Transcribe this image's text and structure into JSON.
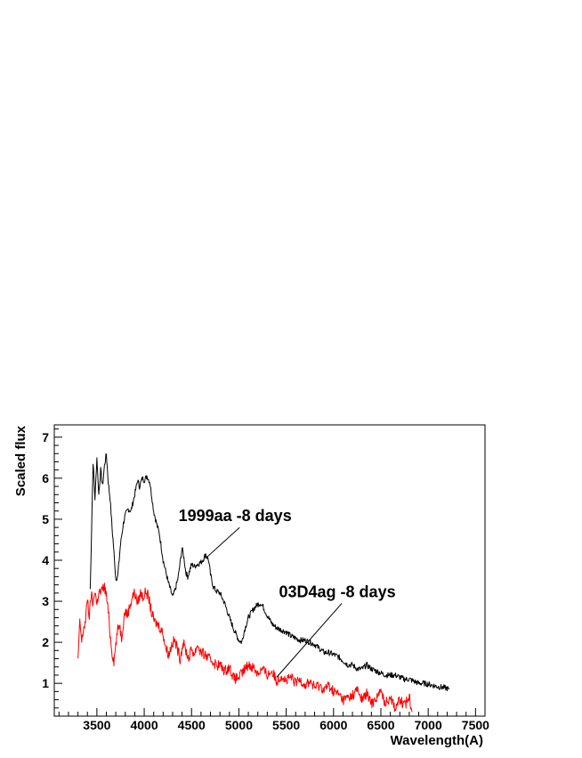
{
  "chart_data": {
    "type": "line",
    "title": "",
    "xlabel": "Wavelength(A)",
    "ylabel": "Scaled flux",
    "xlim": [
      3050,
      7600
    ],
    "ylim": [
      0.2,
      7.3
    ],
    "xticks": [
      3500,
      4000,
      4500,
      5000,
      5500,
      6000,
      6500,
      7000,
      7500
    ],
    "yticks": [
      1,
      2,
      3,
      4,
      5,
      6,
      7
    ],
    "grid": false,
    "legend": "none",
    "annotations": [
      {
        "text": "1999aa -8 days",
        "points_to_x": 4650,
        "points_to_y": 4.05,
        "text_x": 4960,
        "text_y": 4.95
      },
      {
        "text": "03D4ag -8 days",
        "points_to_x": 5400,
        "points_to_y": 1.15,
        "text_x": 6040,
        "text_y": 3.1
      }
    ],
    "series": [
      {
        "color": "#000000",
        "x": [
          3430,
          3460,
          3480,
          3500,
          3520,
          3540,
          3560,
          3580,
          3600,
          3620,
          3640,
          3660,
          3680,
          3700,
          3720,
          3750,
          3780,
          3800,
          3830,
          3860,
          3900,
          3930,
          3950,
          3980,
          4000,
          4030,
          4060,
          4080,
          4100,
          4130,
          4160,
          4200,
          4250,
          4300,
          4330,
          4360,
          4380,
          4400,
          4420,
          4440,
          4460,
          4480,
          4500,
          4530,
          4560,
          4600,
          4630,
          4650,
          4680,
          4700,
          4730,
          4760,
          4800,
          4850,
          4900,
          4950,
          5000,
          5030,
          5060,
          5100,
          5150,
          5200,
          5230,
          5260,
          5300,
          5350,
          5400,
          5450,
          5500,
          5550,
          5600,
          5650,
          5700,
          5750,
          5800,
          5850,
          5900,
          5950,
          6000,
          6050,
          6100,
          6150,
          6200,
          6250,
          6300,
          6350,
          6400,
          6450,
          6500,
          6550,
          6600,
          6650,
          6700,
          6750,
          6800,
          6850,
          6900,
          6950,
          7000,
          7050,
          7100,
          7150,
          7200,
          7220
        ],
        "y": [
          3.3,
          6.4,
          5.5,
          6.5,
          5.6,
          6.2,
          5.8,
          6.3,
          6.6,
          5.9,
          5.5,
          4.8,
          4.2,
          3.55,
          3.6,
          4.4,
          4.9,
          5.1,
          5.25,
          5.2,
          5.6,
          5.95,
          5.8,
          6.0,
          5.95,
          6.05,
          5.9,
          5.55,
          5.2,
          4.9,
          4.65,
          4.0,
          3.5,
          3.1,
          3.3,
          3.6,
          3.95,
          4.3,
          4.05,
          3.7,
          3.6,
          3.75,
          3.9,
          3.85,
          3.9,
          3.95,
          4.05,
          4.15,
          4.0,
          3.65,
          3.35,
          3.25,
          3.2,
          2.95,
          2.6,
          2.3,
          2.05,
          2.0,
          2.3,
          2.6,
          2.8,
          2.93,
          2.95,
          2.85,
          2.65,
          2.45,
          2.35,
          2.3,
          2.25,
          2.15,
          2.1,
          2.05,
          2.05,
          2.0,
          1.95,
          1.85,
          1.75,
          1.75,
          1.7,
          1.65,
          1.55,
          1.45,
          1.45,
          1.35,
          1.35,
          1.45,
          1.35,
          1.3,
          1.25,
          1.2,
          1.2,
          1.2,
          1.15,
          1.1,
          1.1,
          1.05,
          1.0,
          1.0,
          0.98,
          0.95,
          0.92,
          0.9,
          0.88,
          0.85
        ]
      },
      {
        "color": "#ff0000",
        "x": [
          3300,
          3320,
          3340,
          3360,
          3380,
          3400,
          3420,
          3440,
          3460,
          3480,
          3500,
          3520,
          3540,
          3560,
          3580,
          3600,
          3620,
          3640,
          3660,
          3680,
          3700,
          3720,
          3740,
          3760,
          3780,
          3800,
          3820,
          3850,
          3880,
          3900,
          3930,
          3960,
          3990,
          4020,
          4050,
          4080,
          4110,
          4140,
          4170,
          4200,
          4230,
          4260,
          4290,
          4320,
          4350,
          4380,
          4410,
          4440,
          4470,
          4500,
          4530,
          4560,
          4600,
          4640,
          4680,
          4720,
          4760,
          4800,
          4850,
          4900,
          4950,
          5000,
          5050,
          5100,
          5150,
          5200,
          5250,
          5300,
          5350,
          5400,
          5450,
          5500,
          5550,
          5600,
          5650,
          5700,
          5750,
          5800,
          5850,
          5900,
          5950,
          6000,
          6050,
          6100,
          6150,
          6200,
          6250,
          6300,
          6350,
          6400,
          6450,
          6500,
          6550,
          6600,
          6650,
          6700,
          6750,
          6800,
          6830
        ],
        "y": [
          1.55,
          2.5,
          2.0,
          2.35,
          2.5,
          3.1,
          2.6,
          3.2,
          2.9,
          3.3,
          2.9,
          3.25,
          3.2,
          3.3,
          3.35,
          3.15,
          2.75,
          2.2,
          1.75,
          1.55,
          1.95,
          2.3,
          2.45,
          2.1,
          2.5,
          2.8,
          2.65,
          2.9,
          3.15,
          3.2,
          2.95,
          3.2,
          3.1,
          3.25,
          3.05,
          2.7,
          2.5,
          2.45,
          2.35,
          2.2,
          1.85,
          1.7,
          1.95,
          2.05,
          1.85,
          1.6,
          2.0,
          1.8,
          1.6,
          1.85,
          1.7,
          1.95,
          1.75,
          1.7,
          1.6,
          1.55,
          1.45,
          1.45,
          1.3,
          1.4,
          1.1,
          1.15,
          1.3,
          1.45,
          1.4,
          1.25,
          1.35,
          1.2,
          1.3,
          1.05,
          1.2,
          1.05,
          1.15,
          1.0,
          1.1,
          0.95,
          1.05,
          0.9,
          0.95,
          0.85,
          0.95,
          0.8,
          0.75,
          0.6,
          0.65,
          0.7,
          0.85,
          0.6,
          0.75,
          0.5,
          0.65,
          0.8,
          0.5,
          0.7,
          0.4,
          0.6,
          0.45,
          0.7,
          0.3
        ]
      }
    ]
  }
}
